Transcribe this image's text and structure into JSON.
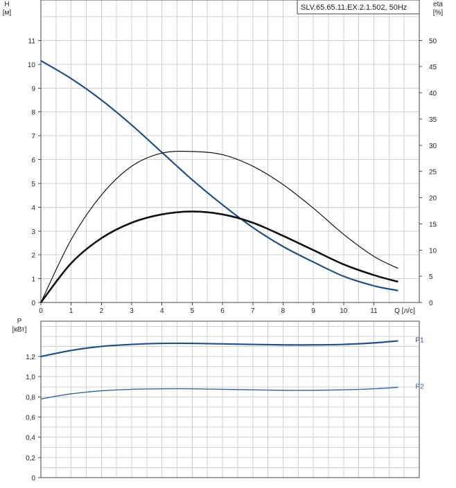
{
  "title": "SLV.65.65.11.EX.2.1.502, 50Hz",
  "colors": {
    "head": "#1f4e8c",
    "efficiency": "#111111",
    "power_p1": "#1f4e8c",
    "power_p2": "#2e64a8",
    "grid": "#d0d0d0"
  },
  "chart_data": [
    {
      "type": "line",
      "title": "SLV.65.65.11.EX.2.1.502, 50Hz",
      "xlabel": "Q [л/с]",
      "ylabel": "H\n[м]",
      "y2label": "eta\n[%]",
      "xlim": [
        0,
        12.5
      ],
      "ylim": [
        0,
        12.7
      ],
      "y2lim": [
        0,
        57.7
      ],
      "grid": true,
      "x_ticks": [
        "0",
        "1",
        "2",
        "3",
        "4",
        "5",
        "6",
        "7",
        "8",
        "9",
        "10",
        "11"
      ],
      "y_ticks": [
        "0",
        "1",
        "2",
        "3",
        "4",
        "5",
        "6",
        "7",
        "8",
        "9",
        "10",
        "11"
      ],
      "y2_ticks": [
        "0",
        "5",
        "10",
        "15",
        "20",
        "25",
        "30",
        "35",
        "40",
        "45",
        "50"
      ],
      "series": [
        {
          "axis": "left",
          "x": [
            0,
            1,
            2,
            3,
            4,
            5,
            6,
            7,
            8,
            9,
            10,
            11,
            11.8
          ],
          "values": [
            10.15,
            9.4,
            8.5,
            7.45,
            6.3,
            5.15,
            4.1,
            3.15,
            2.35,
            1.7,
            1.1,
            0.7,
            0.5
          ]
        },
        {
          "axis": "right",
          "x": [
            0,
            1,
            2,
            3,
            4,
            5,
            6,
            7,
            8,
            9,
            10,
            11,
            11.8
          ],
          "values": [
            0,
            12,
            20.5,
            26,
            28.5,
            28.8,
            28.2,
            26,
            22.5,
            18,
            13,
            8.8,
            6.5
          ]
        },
        {
          "axis": "left",
          "x": [
            0,
            1,
            2,
            3,
            4,
            5,
            6,
            7,
            8,
            9,
            10,
            11,
            11.8
          ],
          "values": [
            0,
            1.65,
            2.7,
            3.35,
            3.7,
            3.82,
            3.7,
            3.35,
            2.8,
            2.2,
            1.6,
            1.15,
            0.87
          ]
        }
      ]
    },
    {
      "type": "line",
      "xlabel": "",
      "ylabel": "P\n[кВт]",
      "xlim": [
        0,
        12.5
      ],
      "ylim": [
        0,
        1.55
      ],
      "grid": true,
      "y_ticks": [
        "0",
        "0,2",
        "0,4",
        "0,6",
        "0,8",
        "1,0",
        "1,2"
      ],
      "series": [
        {
          "name": "P1",
          "x": [
            0,
            1,
            2,
            3,
            4,
            5,
            6,
            7,
            8,
            9,
            10,
            11,
            11.8
          ],
          "values": [
            1.2,
            1.26,
            1.3,
            1.32,
            1.33,
            1.33,
            1.325,
            1.32,
            1.315,
            1.315,
            1.32,
            1.335,
            1.355
          ]
        },
        {
          "name": "P2",
          "x": [
            0,
            1,
            2,
            3,
            4,
            5,
            6,
            7,
            8,
            9,
            10,
            11,
            11.8
          ],
          "values": [
            0.78,
            0.83,
            0.86,
            0.875,
            0.88,
            0.88,
            0.875,
            0.87,
            0.865,
            0.865,
            0.87,
            0.88,
            0.895
          ]
        }
      ]
    }
  ]
}
